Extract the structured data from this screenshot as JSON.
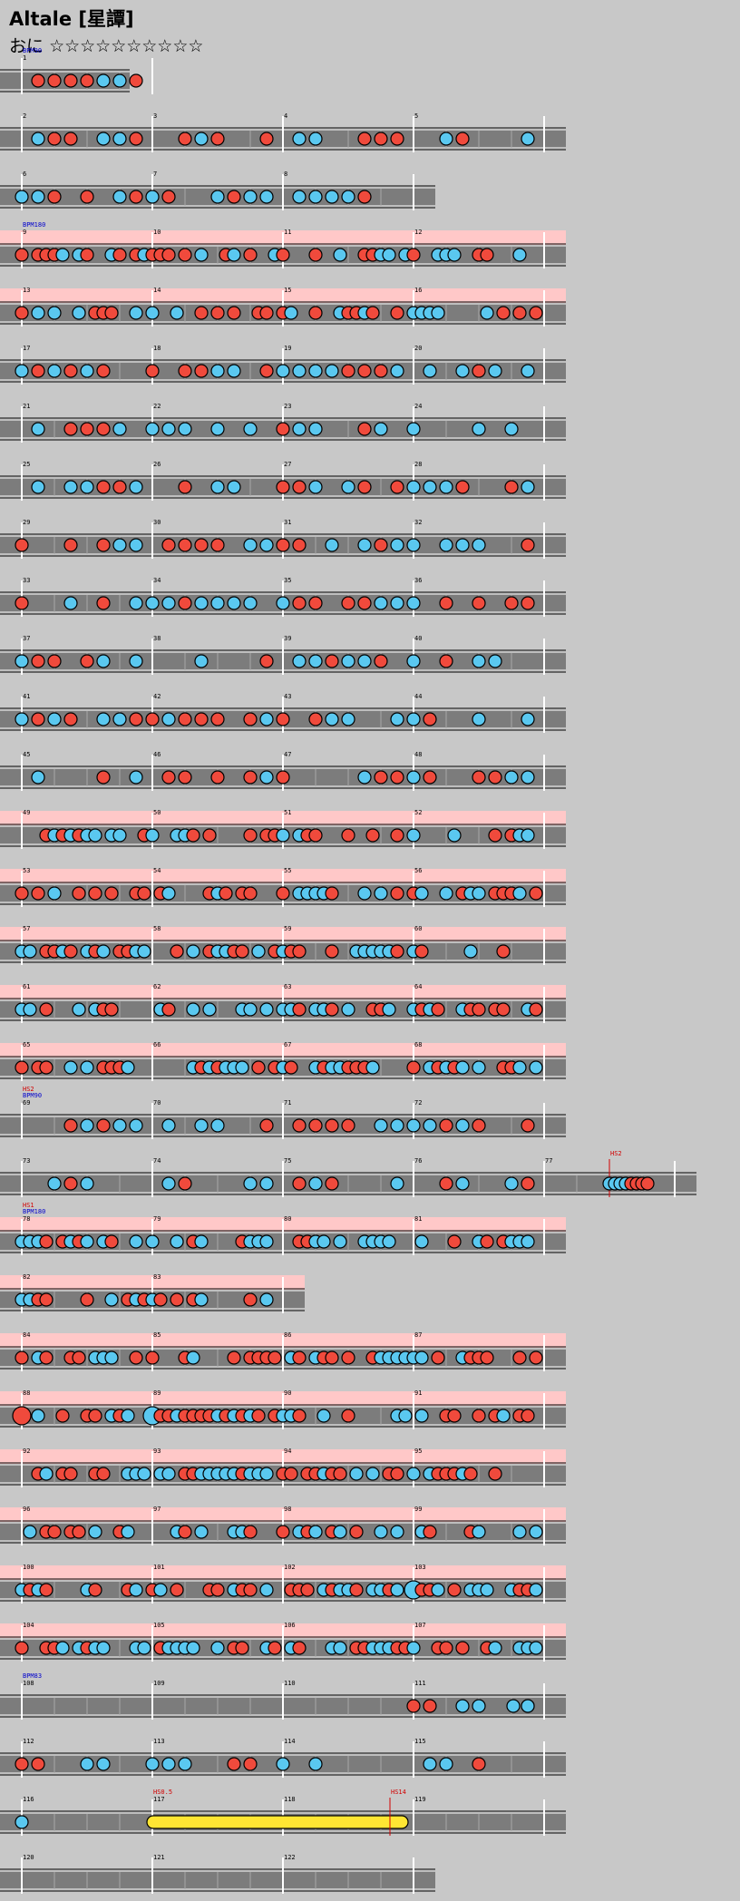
{
  "song": {
    "title": "Altale [星譚]",
    "difficulty_label": "おに",
    "stars": "☆☆☆☆☆☆☆☆☆☆"
  },
  "colors": {
    "background": "#c8c8c8",
    "lane": "#7c7c7c",
    "gogo": "#ffc8c8",
    "don": "#f04a3c",
    "ka": "#5ac8f0",
    "roll": "#ffe633",
    "bpm_text": "#0000cc",
    "hs_text": "#d20000"
  },
  "rows": [
    {
      "measures": [
        1
      ],
      "width": 1,
      "bpm": "BPM90"
    },
    {
      "measures": [
        2,
        3,
        4,
        5
      ]
    },
    {
      "measures": [
        6,
        7,
        8
      ],
      "width": 3
    },
    {
      "measures": [
        9,
        10,
        11,
        12
      ],
      "gogo": true,
      "bpm": "BPM180"
    },
    {
      "measures": [
        13,
        14,
        15,
        16
      ],
      "gogo": true
    },
    {
      "measures": [
        17,
        18,
        19,
        20
      ]
    },
    {
      "measures": [
        21,
        22,
        23,
        24
      ]
    },
    {
      "measures": [
        25,
        26,
        27,
        28
      ]
    },
    {
      "measures": [
        29,
        30,
        31,
        32
      ]
    },
    {
      "measures": [
        33,
        34,
        35,
        36
      ]
    },
    {
      "measures": [
        37,
        38,
        39,
        40
      ]
    },
    {
      "measures": [
        41,
        42,
        43,
        44
      ]
    },
    {
      "measures": [
        45,
        46,
        47,
        48
      ]
    },
    {
      "measures": [
        49,
        50,
        51,
        52
      ],
      "gogo": true
    },
    {
      "measures": [
        53,
        54,
        55,
        56
      ],
      "gogo": true
    },
    {
      "measures": [
        57,
        58,
        59,
        60
      ],
      "gogo": true
    },
    {
      "measures": [
        61,
        62,
        63,
        64
      ],
      "gogo": true
    },
    {
      "measures": [
        65,
        66,
        67,
        68
      ],
      "gogo": true
    },
    {
      "measures": [
        69,
        70,
        71,
        72
      ],
      "bpm": "BPM90",
      "hs": "HS2"
    },
    {
      "measures": [
        73,
        74,
        75,
        76,
        77
      ],
      "width": 5,
      "hs_mid": "HS2"
    },
    {
      "measures": [
        78,
        79,
        80,
        81
      ],
      "gogo": true,
      "bpm": "BPM180",
      "hs": "HS1"
    },
    {
      "measures": [
        82,
        83
      ],
      "width": 2,
      "gogo": true
    },
    {
      "measures": [
        84,
        85,
        86,
        87
      ],
      "gogo": true
    },
    {
      "measures": [
        88,
        89,
        90,
        91
      ],
      "gogo": true
    },
    {
      "measures": [
        92,
        93,
        94,
        95
      ],
      "gogo": true
    },
    {
      "measures": [
        96,
        97,
        98,
        99
      ],
      "gogo": true
    },
    {
      "measures": [
        100,
        101,
        102,
        103
      ],
      "gogo": true
    },
    {
      "measures": [
        104,
        105,
        106,
        107
      ],
      "gogo": true
    },
    {
      "measures": [
        108,
        109,
        110,
        111
      ],
      "bpm": "BPM83"
    },
    {
      "measures": [
        112,
        113,
        114,
        115
      ]
    },
    {
      "measures": [
        116,
        117,
        118,
        119
      ],
      "roll": true,
      "hs_roll_start": "HS0.5",
      "hs_roll_end": "HS14"
    },
    {
      "measures": [
        120,
        121,
        122
      ],
      "width": 3
    }
  ]
}
